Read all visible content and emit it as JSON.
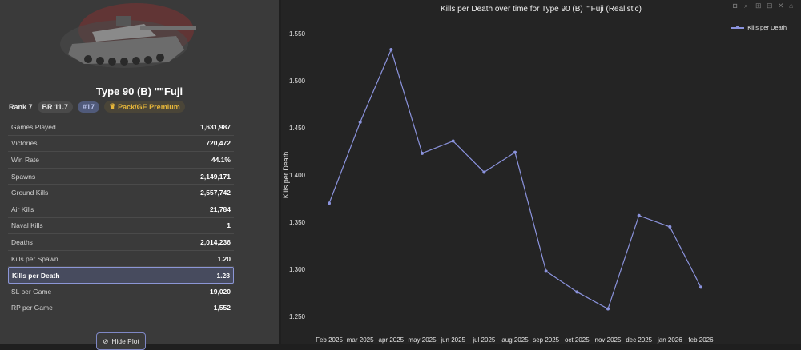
{
  "vehicle": {
    "name": "Type 90 (B) \"\"Fuji",
    "rank": "Rank 7",
    "br": "BR 11.7",
    "number": "#17",
    "premium": "Pack/GE Premium"
  },
  "stats": [
    {
      "label": "Games Played",
      "value": "1,631,987"
    },
    {
      "label": "Victories",
      "value": "720,472"
    },
    {
      "label": "Win Rate",
      "value": "44.1%"
    },
    {
      "label": "Spawns",
      "value": "2,149,171"
    },
    {
      "label": "Ground Kills",
      "value": "2,557,742"
    },
    {
      "label": "Air Kills",
      "value": "21,784"
    },
    {
      "label": "Naval Kills",
      "value": "1"
    },
    {
      "label": "Deaths",
      "value": "2,014,236"
    },
    {
      "label": "Kills per Spawn",
      "value": "1.20"
    },
    {
      "label": "Kills per Death",
      "value": "1.28"
    },
    {
      "label": "SL per Game",
      "value": "19,020"
    },
    {
      "label": "RP per Game",
      "value": "1,552"
    }
  ],
  "hide_plot_label": "Hide Plot",
  "icons": [
    "camera-icon",
    "zoom-icon",
    "zoom-in-icon",
    "zoom-out-icon",
    "autoscale-icon",
    "home-icon"
  ],
  "colors": {
    "line": "#8b93dd",
    "highlight_border": "#8c96d6",
    "premium": "#e5b53a"
  },
  "chart_data": {
    "type": "line",
    "title": "Kills per Death over time for Type 90 (B) \"\"Fuji (Realistic)",
    "xlabel": "",
    "ylabel": "Kills per Death",
    "categories": [
      "Feb 2025",
      "mar 2025",
      "apr 2025",
      "may 2025",
      "jun 2025",
      "jul 2025",
      "aug 2025",
      "sep 2025",
      "oct 2025",
      "nov 2025",
      "dec 2025",
      "jan 2026",
      "feb 2026"
    ],
    "series": [
      {
        "name": "Kills per Death",
        "values": [
          1.37,
          1.456,
          1.533,
          1.423,
          1.436,
          1.403,
          1.424,
          1.298,
          1.276,
          1.258,
          1.357,
          1.345,
          1.281
        ]
      }
    ],
    "yticks": [
      "1.250",
      "1.300",
      "1.350",
      "1.400",
      "1.450",
      "1.500",
      "1.550"
    ],
    "ylim": [
      1.245,
      1.56
    ],
    "legend_position": "top-right",
    "grid": false
  }
}
